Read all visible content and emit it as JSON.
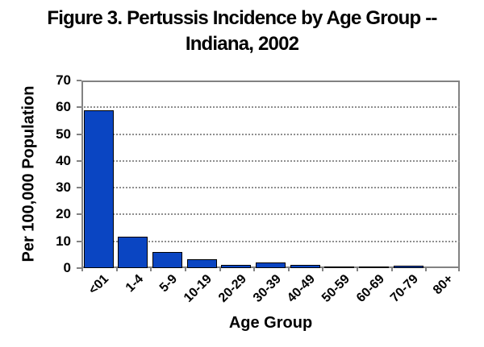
{
  "title": {
    "line1": "Figure 3. Pertussis Incidence by Age Group --",
    "line2": "Indiana, 2002"
  },
  "chart_data": {
    "type": "bar",
    "title": "Figure 3. Pertussis Incidence by Age Group -- Indiana, 2002",
    "categories": [
      "<01",
      "1-4",
      "5-9",
      "10-19",
      "20-29",
      "30-39",
      "40-49",
      "50-59",
      "60-69",
      "70-79",
      "80+"
    ],
    "values": [
      59,
      11.7,
      6,
      3.3,
      1.1,
      2.1,
      1.1,
      0.6,
      0.7,
      0.8,
      0
    ],
    "xlabel": "Age Group",
    "ylabel": "Per 100,000 Population",
    "ylim": [
      0,
      70
    ],
    "yticks": [
      0,
      10,
      20,
      30,
      40,
      50,
      60,
      70
    ],
    "grid": "horizontal-dotted",
    "legend": "none",
    "bar_color": "#0a45c2",
    "bar_border_color": "#000000",
    "plot_border_color": "#828282",
    "gridline_color": "#8f8f8f"
  }
}
